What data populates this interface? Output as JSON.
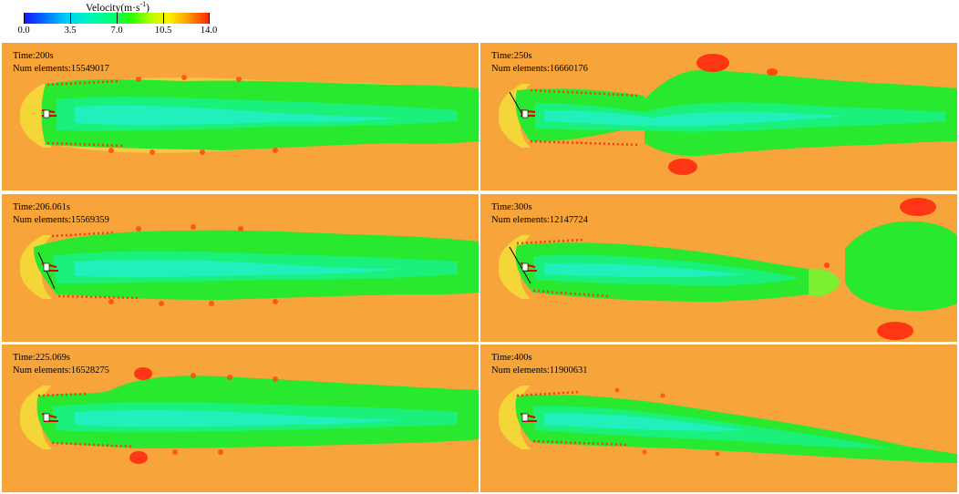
{
  "legend": {
    "title_main": "Velocity(m·s",
    "title_sup": "-1",
    "title_end": ")",
    "ticks": [
      "0.0",
      "3.5",
      "7.0",
      "10.5",
      "14.0"
    ]
  },
  "panels": [
    {
      "time_label": "Time:200s",
      "elements_label": "Num elements:15549017"
    },
    {
      "time_label": "Time:250s",
      "elements_label": "Num elements:16660176"
    },
    {
      "time_label": "Time:206.061s",
      "elements_label": "Num elements:15569359"
    },
    {
      "time_label": "Time:300s",
      "elements_label": "Num elements:12147724"
    },
    {
      "time_label": "Time:225.069s",
      "elements_label": "Num elements:16528275"
    },
    {
      "time_label": "Time:400s",
      "elements_label": "Num elements:11900631"
    }
  ]
}
